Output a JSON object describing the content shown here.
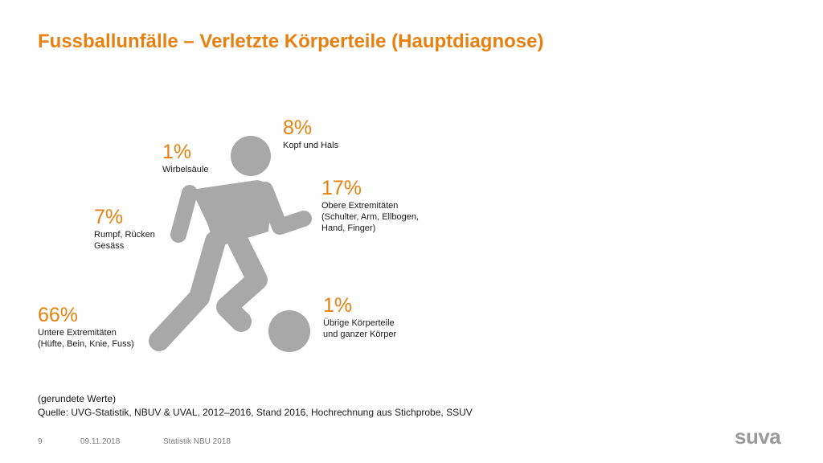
{
  "title": "Fussballunfälle – Verletzte Körperteile (Hauptdiagnose)",
  "icons": {
    "figure": "football-player-icon",
    "ball": "ball-icon"
  },
  "colors": {
    "accent": "#e8800f",
    "figure": "#a8a8a8",
    "text": "#1a1a1a",
    "footer": "#7a7a7a"
  },
  "stats": {
    "head": {
      "percent": "8%",
      "label": "Kopf und Hals"
    },
    "spine": {
      "percent": "1%",
      "label": "Wirbelsäule"
    },
    "upper": {
      "percent": "17%",
      "label": "Obere Extremitäten\n(Schulter, Arm, Ellbogen,\nHand, Finger)"
    },
    "trunk": {
      "percent": "7%",
      "label": "Rumpf, Rücken\nGesäss"
    },
    "other": {
      "percent": "1%",
      "label": "Übrige Körperteile\nund ganzer Körper"
    },
    "lower": {
      "percent": "66%",
      "label": "Untere Extremitäten\n(Hüfte, Bein, Knie, Fuss)"
    }
  },
  "note": "(gerundete Werte)",
  "source": "Quelle: UVG-Statistik, NBUV & UVAL, 2012–2016, Stand 2016, Hochrechnung aus Stichprobe, SSUV",
  "footer": {
    "page": "9",
    "date": "09.11.2018",
    "label": "Statistik NBU 2018"
  },
  "logo": "suva"
}
